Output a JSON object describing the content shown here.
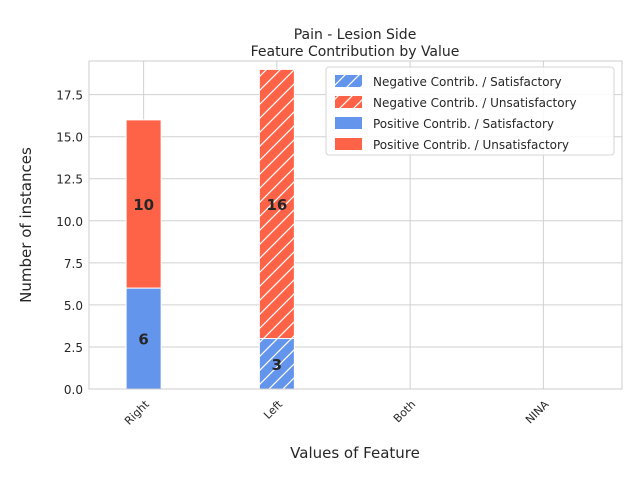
{
  "chart_data": {
    "type": "bar",
    "stacked": true,
    "title": "Pain - Lesion Side",
    "subtitle": "Feature Contribution by Value",
    "xlabel": "Values of Feature",
    "ylabel": "Number of instances",
    "categories": [
      "Right",
      "Left",
      "Both",
      "NINA"
    ],
    "ylim": [
      0,
      19.5
    ],
    "yticks": [
      "0.0",
      "2.5",
      "5.0",
      "7.5",
      "10.0",
      "12.5",
      "15.0",
      "17.5"
    ],
    "grid": true,
    "legend_position": "top-right",
    "colors": {
      "satisfactory": "#6495ED",
      "unsatisfactory": "#FF6347",
      "grid": "#d0d0d0",
      "axis": "#cccccc",
      "text": "#262626"
    },
    "series": [
      {
        "name": "Negative Contrib. / Satisfactory",
        "hatch": true,
        "group": "satisfactory",
        "values": [
          0,
          3,
          0,
          0
        ]
      },
      {
        "name": "Negative Contrib. / Unsatisfactory",
        "hatch": true,
        "group": "unsatisfactory",
        "values": [
          0,
          16,
          0,
          0
        ]
      },
      {
        "name": "Positive Contrib. / Satisfactory",
        "hatch": false,
        "group": "satisfactory",
        "values": [
          6,
          0,
          0,
          0
        ]
      },
      {
        "name": "Positive Contrib. / Unsatisfactory",
        "hatch": false,
        "group": "unsatisfactory",
        "values": [
          10,
          0,
          0,
          0
        ]
      }
    ],
    "data_labels": [
      {
        "category": "Right",
        "series": "Positive Contrib. / Satisfactory",
        "text": "6"
      },
      {
        "category": "Right",
        "series": "Positive Contrib. / Unsatisfactory",
        "text": "10"
      },
      {
        "category": "Left",
        "series": "Negative Contrib. / Satisfactory",
        "text": "3"
      },
      {
        "category": "Left",
        "series": "Negative Contrib. / Unsatisfactory",
        "text": "16"
      }
    ]
  }
}
